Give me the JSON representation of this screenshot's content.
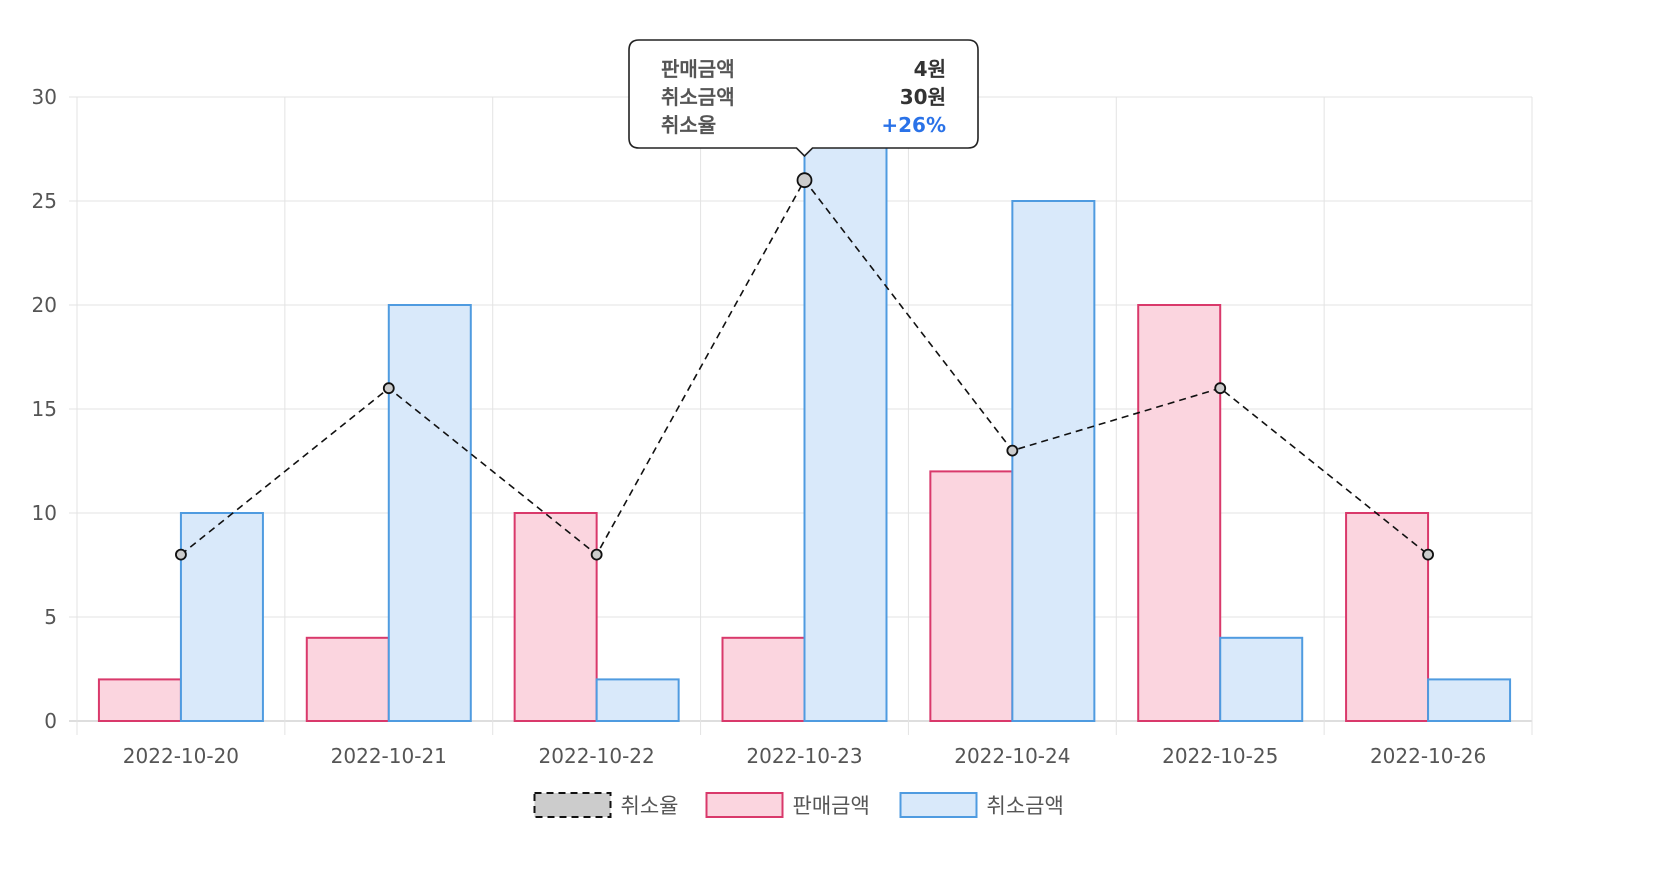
{
  "chart_data": {
    "type": "bar",
    "categories": [
      "2022-10-20",
      "2022-10-21",
      "2022-10-22",
      "2022-10-23",
      "2022-10-24",
      "2022-10-25",
      "2022-10-26"
    ],
    "series": [
      {
        "name": "판매금액",
        "type": "bar",
        "values": [
          2,
          4,
          10,
          4,
          12,
          20,
          10
        ],
        "color": "#d9396b",
        "fill": "#fbd5df"
      },
      {
        "name": "취소금액",
        "type": "bar",
        "values": [
          10,
          20,
          2,
          30,
          25,
          4,
          2
        ],
        "color": "#4f9be0",
        "fill": "#d9e9fa"
      },
      {
        "name": "취소율",
        "type": "line",
        "style": "dashed",
        "values": [
          8,
          16,
          8,
          26,
          13,
          16,
          8
        ],
        "color": "#111111",
        "fill": "#cccccc"
      }
    ],
    "legend_order": [
      2,
      0,
      1
    ],
    "ylim": [
      0,
      30
    ],
    "yticks": [
      0,
      5,
      10,
      15,
      20,
      25,
      30
    ],
    "grid": true,
    "legend_position": "bottom",
    "tooltip": {
      "category_index": 3,
      "rows": [
        {
          "label": "판매금액",
          "value": "4원",
          "color": "#333333"
        },
        {
          "label": "취소금액",
          "value": "30원",
          "color": "#333333"
        },
        {
          "label": "취소율",
          "value": "+26%",
          "color": "#2a72e8"
        }
      ]
    }
  }
}
